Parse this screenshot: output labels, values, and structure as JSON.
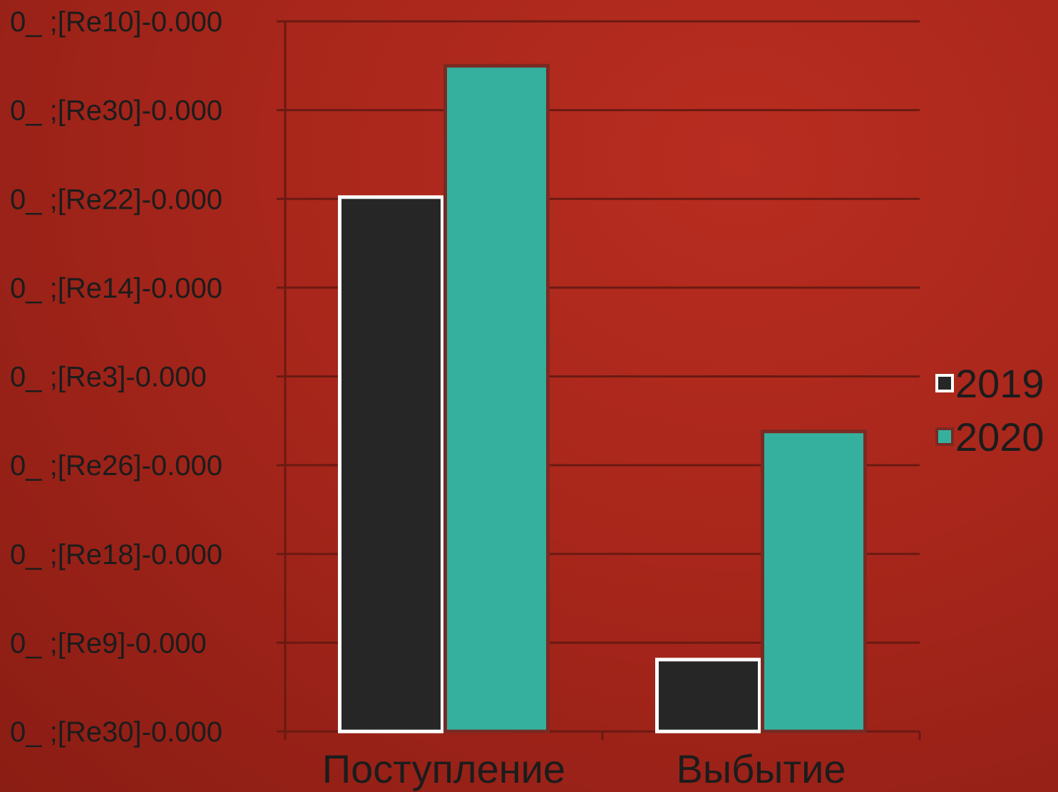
{
  "chart_data": {
    "type": "bar",
    "title": "",
    "xlabel": "",
    "ylabel": "",
    "categories": [
      "Поступление",
      "Выбытие"
    ],
    "y_tick_labels": [
      "0_ ;[Re30]-0.000",
      "0_ ;[Re9]-0.000",
      "0_ ;[Re18]-0.000",
      "0_ ;[Re26]-0.000",
      "0_ ;[Re3]-0.000",
      "0_ ;[Re14]-0.000",
      "0_ ;[Re22]-0.000",
      "0_ ;[Re30]-0.000",
      "0_ ;[Re10]-0.000"
    ],
    "ylim": [
      0,
      8
    ],
    "series": [
      {
        "name": "2019",
        "values": [
          6.02,
          0.81
        ],
        "color": "#262626",
        "stroke": "#ffffff"
      },
      {
        "name": "2020",
        "values": [
          7.5,
          3.38
        ],
        "color": "#36b09e",
        "stroke": "#7a2a22"
      }
    ],
    "grid": true,
    "legend_position": "right"
  }
}
